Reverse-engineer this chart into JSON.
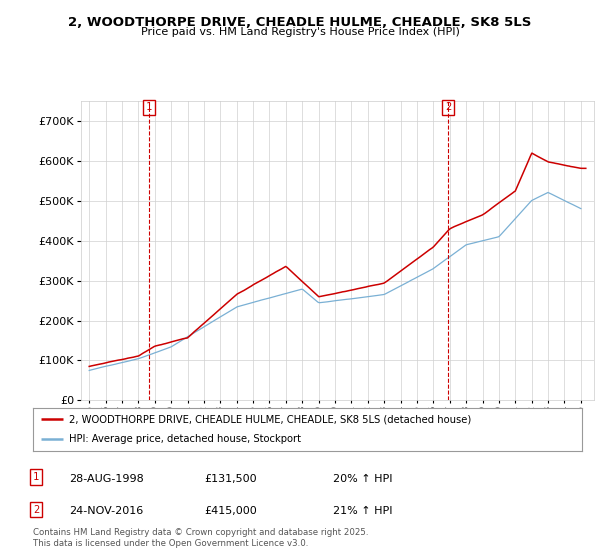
{
  "title": "2, WOODTHORPE DRIVE, CHEADLE HULME, CHEADLE, SK8 5LS",
  "subtitle": "Price paid vs. HM Land Registry's House Price Index (HPI)",
  "legend_line1": "2, WOODTHORPE DRIVE, CHEADLE HULME, CHEADLE, SK8 5LS (detached house)",
  "legend_line2": "HPI: Average price, detached house, Stockport",
  "annotation1_label": "1",
  "annotation1_date": "28-AUG-1998",
  "annotation1_price": "£131,500",
  "annotation1_hpi": "20% ↑ HPI",
  "annotation2_label": "2",
  "annotation2_date": "24-NOV-2016",
  "annotation2_price": "£415,000",
  "annotation2_hpi": "21% ↑ HPI",
  "footer": "Contains HM Land Registry data © Crown copyright and database right 2025.\nThis data is licensed under the Open Government Licence v3.0.",
  "price_color": "#cc0000",
  "hpi_color": "#7ab0d4",
  "annotation_color": "#cc0000",
  "yticks": [
    0,
    100000,
    200000,
    300000,
    400000,
    500000,
    600000,
    700000
  ],
  "ylim": [
    0,
    750000
  ],
  "xlim_min": 1994.5,
  "xlim_max": 2025.8,
  "background_color": "#ffffff",
  "sale1_x": 1998.65,
  "sale1_y": 131500,
  "sale2_x": 2016.9,
  "sale2_y": 415000,
  "hpi_start_year": 1995,
  "hpi_end_year": 2025,
  "price_start_year": 1995,
  "price_end_year": 2025.3
}
